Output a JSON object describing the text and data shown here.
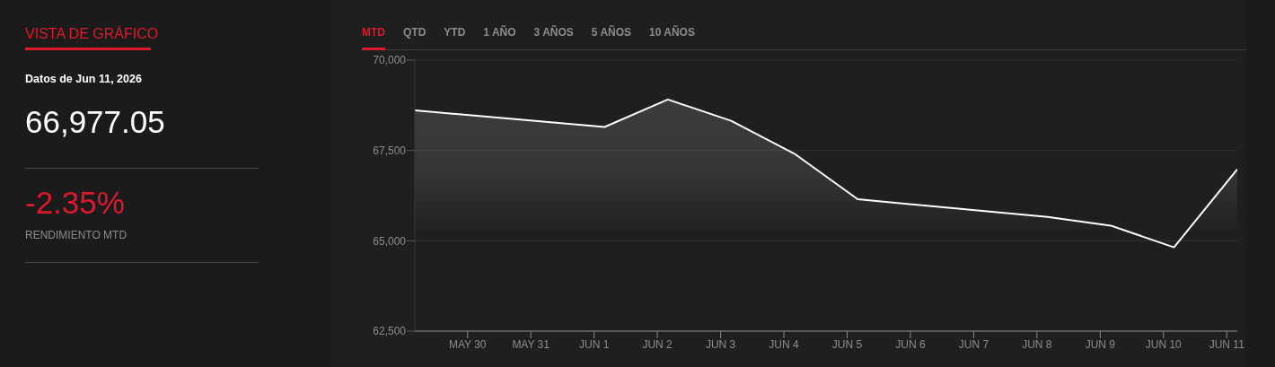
{
  "chart_data": {
    "type": "area",
    "title": "VISTA DE GRÁFICO",
    "subtitle": "Datos de Jun 11, 2026",
    "annotations": [
      "66,977.05",
      "-2.35%",
      "RENDIMIENTO MTD",
      "MTD",
      "QTD",
      "YTD",
      "1 AÑO",
      "3 AÑOS",
      "5 AÑOS",
      "10 AÑOS"
    ],
    "x": [
      "2026-05-29T04:00",
      "2026-06-01T04:00",
      "2026-06-02T04:00",
      "2026-06-03T04:00",
      "2026-06-04T04:00",
      "2026-06-05T04:00",
      "2026-06-08T04:00",
      "2026-06-09T04:00",
      "2026-06-10T04:00",
      "2026-06-11T04:00"
    ],
    "series": [
      {
        "color": "#ffffff",
        "values": [
          68610,
          68150,
          68910,
          68320,
          67410,
          66150,
          65660,
          65420,
          64820,
          66980
        ]
      }
    ],
    "xlim": [
      "2026-05-29T04:00",
      "2026-06-11T04:00"
    ],
    "xticks": [
      {
        "value": "2026-05-30",
        "label": "MAY 30"
      },
      {
        "value": "2026-05-31",
        "label": "MAY 31"
      },
      {
        "value": "2026-06-01",
        "label": "JUN 1"
      },
      {
        "value": "2026-06-02",
        "label": "JUN 2"
      },
      {
        "value": "2026-06-03",
        "label": "JUN 3"
      },
      {
        "value": "2026-06-04",
        "label": "JUN 4"
      },
      {
        "value": "2026-06-05",
        "label": "JUN 5"
      },
      {
        "value": "2026-06-06",
        "label": "JUN 6"
      },
      {
        "value": "2026-06-07",
        "label": "JUN 7"
      },
      {
        "value": "2026-06-08",
        "label": "JUN 8"
      },
      {
        "value": "2026-06-09",
        "label": "JUN 9"
      },
      {
        "value": "2026-06-10",
        "label": "JUN 10"
      },
      {
        "value": "2026-06-11",
        "label": "JUN 11"
      }
    ],
    "ylim": [
      62500,
      70000
    ],
    "yticks": [
      {
        "value": 62500,
        "label": "62,500"
      },
      {
        "value": 65000,
        "label": "65,000"
      },
      {
        "value": 67500,
        "label": "67,500"
      },
      {
        "value": 70000,
        "label": "70,000"
      }
    ],
    "grid": "y"
  }
}
